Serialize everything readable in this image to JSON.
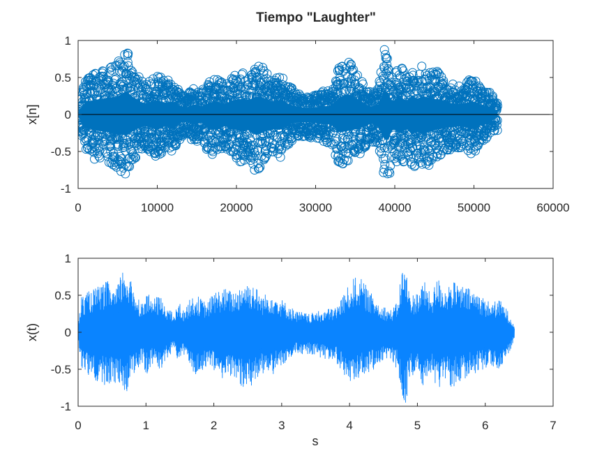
{
  "figure": {
    "title": "Tiempo \"Laughter\""
  },
  "chart_data": [
    {
      "type": "scatter",
      "marker": "open-circle",
      "title": "Tiempo \"Laughter\"",
      "xlabel": "",
      "ylabel": "x[n]",
      "xlim": [
        0,
        60000
      ],
      "ylim": [
        -1,
        1
      ],
      "xticks": [
        "0",
        "10000",
        "20000",
        "30000",
        "40000",
        "50000",
        "60000"
      ],
      "yticks": [
        "1",
        "0.5",
        "0",
        "-0.5",
        "-1"
      ],
      "baseline": 0,
      "color": "#0072BD",
      "baseline_color": "#000000",
      "grid": false,
      "n_samples": 53000,
      "envelope": {
        "x": [
          0,
          1000,
          2000,
          3000,
          4000,
          5000,
          5800,
          6200,
          6600,
          7500,
          8500,
          10000,
          11000,
          12000,
          12600,
          13500,
          14800,
          15500,
          16500,
          17500,
          18500,
          19500,
          20500,
          21500,
          22500,
          23300,
          24500,
          25500,
          26300,
          27500,
          29000,
          30500,
          32000,
          33000,
          33800,
          34500,
          35500,
          36300,
          37000,
          38000,
          38600,
          39200,
          39600,
          40000,
          40700,
          41500,
          42200,
          42800,
          43500,
          44200,
          45000,
          46000,
          47000,
          48000,
          49000,
          50000,
          51000,
          52000,
          53000
        ],
        "upper": [
          0.1,
          0.5,
          0.55,
          0.6,
          0.65,
          0.7,
          0.85,
          0.9,
          0.75,
          0.55,
          0.4,
          0.55,
          0.45,
          0.5,
          0.38,
          0.25,
          0.4,
          0.3,
          0.45,
          0.5,
          0.4,
          0.55,
          0.6,
          0.55,
          0.7,
          0.65,
          0.5,
          0.55,
          0.45,
          0.3,
          0.25,
          0.3,
          0.35,
          0.65,
          0.78,
          0.7,
          0.55,
          0.4,
          0.3,
          0.4,
          0.9,
          0.85,
          0.5,
          0.55,
          0.7,
          0.5,
          0.75,
          0.6,
          0.7,
          0.65,
          0.6,
          0.55,
          0.45,
          0.4,
          0.45,
          0.5,
          0.35,
          0.3,
          0.1
        ],
        "lower": [
          -0.1,
          -0.5,
          -0.6,
          -0.65,
          -0.7,
          -0.75,
          -0.8,
          -0.82,
          -0.7,
          -0.55,
          -0.45,
          -0.6,
          -0.45,
          -0.55,
          -0.38,
          -0.25,
          -0.42,
          -0.3,
          -0.55,
          -0.6,
          -0.45,
          -0.55,
          -0.65,
          -0.6,
          -0.8,
          -0.7,
          -0.55,
          -0.6,
          -0.45,
          -0.3,
          -0.3,
          -0.35,
          -0.4,
          -0.7,
          -0.65,
          -0.6,
          -0.55,
          -0.45,
          -0.35,
          -0.5,
          -0.95,
          -1.0,
          -0.6,
          -0.6,
          -0.75,
          -0.55,
          -0.8,
          -0.65,
          -0.75,
          -0.7,
          -0.6,
          -0.55,
          -0.5,
          -0.45,
          -0.5,
          -0.55,
          -0.4,
          -0.3,
          -0.1
        ]
      }
    },
    {
      "type": "line",
      "title": "",
      "xlabel": "s",
      "ylabel": "x(t)",
      "xlim": [
        0,
        7
      ],
      "ylim": [
        -1,
        1
      ],
      "xticks": [
        "0",
        "1",
        "2",
        "3",
        "4",
        "5",
        "6",
        "7"
      ],
      "yticks": [
        "1",
        "0.5",
        "0",
        "-0.5",
        "-1"
      ],
      "color": "#0A84FF",
      "grid": false,
      "duration": 6.43,
      "envelope": {
        "x": [
          0,
          0.05,
          0.15,
          0.25,
          0.35,
          0.45,
          0.55,
          0.65,
          0.7,
          0.75,
          0.85,
          0.95,
          1.0,
          1.1,
          1.2,
          1.3,
          1.4,
          1.5,
          1.55,
          1.65,
          1.75,
          1.9,
          2.0,
          2.15,
          2.3,
          2.45,
          2.6,
          2.7,
          2.85,
          3.0,
          3.2,
          3.4,
          3.6,
          3.8,
          4.0,
          4.1,
          4.2,
          4.3,
          4.45,
          4.6,
          4.7,
          4.78,
          4.83,
          4.9,
          5.0,
          5.1,
          5.2,
          5.3,
          5.4,
          5.5,
          5.6,
          5.75,
          5.9,
          6.0,
          6.1,
          6.2,
          6.3,
          6.43
        ],
        "upper": [
          0.1,
          0.5,
          0.55,
          0.6,
          0.65,
          0.7,
          0.55,
          0.85,
          0.9,
          0.75,
          0.55,
          0.4,
          0.55,
          0.45,
          0.5,
          0.38,
          0.25,
          0.4,
          0.3,
          0.45,
          0.5,
          0.4,
          0.55,
          0.6,
          0.55,
          0.7,
          0.65,
          0.5,
          0.55,
          0.45,
          0.3,
          0.25,
          0.3,
          0.35,
          0.65,
          0.78,
          0.7,
          0.55,
          0.4,
          0.3,
          0.4,
          0.9,
          0.85,
          0.5,
          0.55,
          0.7,
          0.5,
          0.75,
          0.6,
          0.7,
          0.65,
          0.6,
          0.55,
          0.45,
          0.4,
          0.45,
          0.35,
          0.1
        ],
        "lower": [
          -0.1,
          -0.5,
          -0.6,
          -0.65,
          -0.7,
          -0.75,
          -0.7,
          -0.8,
          -0.85,
          -0.7,
          -0.55,
          -0.45,
          -0.6,
          -0.45,
          -0.55,
          -0.38,
          -0.25,
          -0.42,
          -0.3,
          -0.55,
          -0.6,
          -0.45,
          -0.55,
          -0.65,
          -0.6,
          -0.8,
          -0.7,
          -0.55,
          -0.6,
          -0.45,
          -0.3,
          -0.3,
          -0.35,
          -0.4,
          -0.7,
          -0.65,
          -0.6,
          -0.55,
          -0.45,
          -0.35,
          -0.5,
          -0.95,
          -1.0,
          -0.6,
          -0.6,
          -0.75,
          -0.55,
          -0.8,
          -0.65,
          -0.75,
          -0.7,
          -0.6,
          -0.55,
          -0.5,
          -0.45,
          -0.5,
          -0.4,
          -0.1
        ]
      }
    }
  ]
}
